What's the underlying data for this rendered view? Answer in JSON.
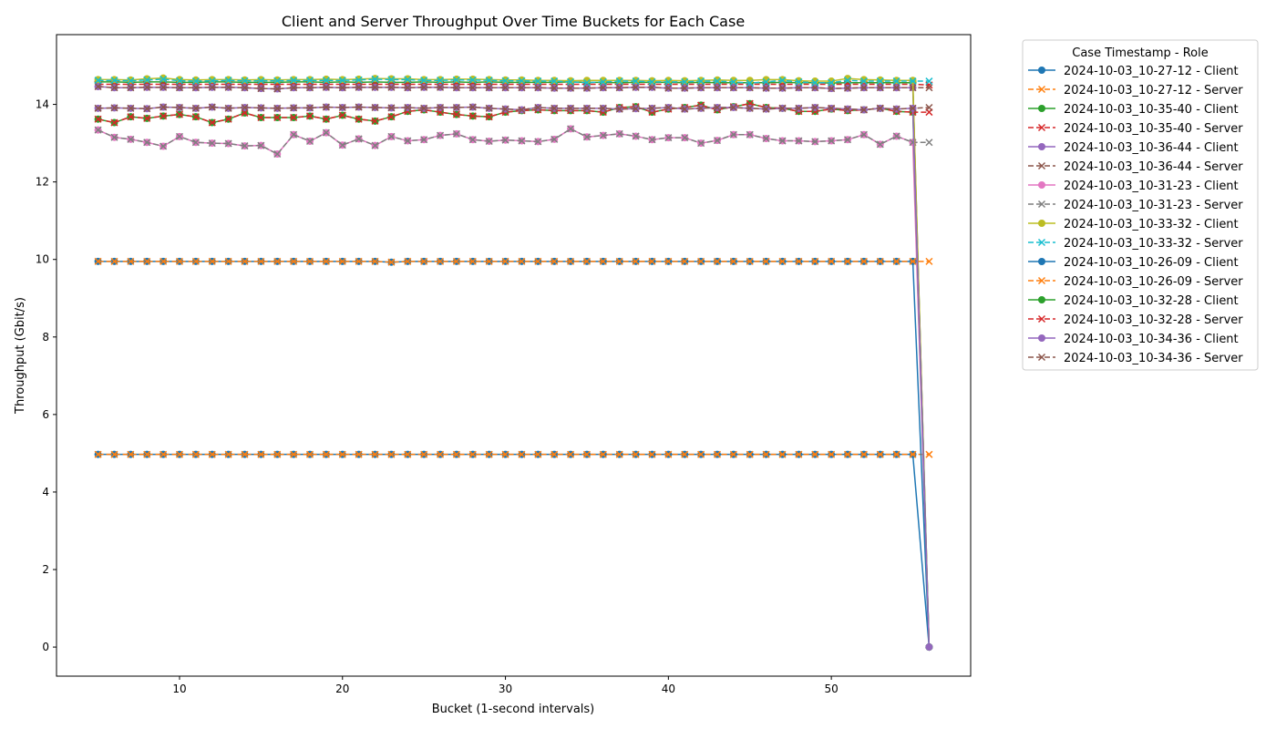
{
  "chart_data": {
    "type": "line",
    "title": "Client and Server Throughput Over Time Buckets for Each Case",
    "xlabel": "Bucket (1-second intervals)",
    "ylabel": "Throughput (Gbit/s)",
    "xlim": [
      2.45,
      58.55
    ],
    "ylim": [
      -0.75,
      15.8
    ],
    "xticks": [
      10,
      20,
      30,
      40,
      50
    ],
    "yticks": [
      0,
      2,
      4,
      6,
      8,
      10,
      12,
      14
    ],
    "grid": false,
    "legend": {
      "title": "Case Timestamp - Role",
      "placement": "outside-top-right"
    },
    "x_start": 5,
    "series": [
      {
        "name": "2024-10-03_10-27-12 - Client",
        "color": "#1f77b4",
        "dash": false,
        "marker": "circle",
        "values": [
          4.97,
          4.97,
          4.97,
          4.97,
          4.97,
          4.97,
          4.97,
          4.97,
          4.97,
          4.97,
          4.97,
          4.97,
          4.97,
          4.97,
          4.97,
          4.97,
          4.97,
          4.97,
          4.97,
          4.97,
          4.97,
          4.97,
          4.97,
          4.97,
          4.97,
          4.97,
          4.97,
          4.97,
          4.97,
          4.97,
          4.97,
          4.97,
          4.97,
          4.97,
          4.97,
          4.97,
          4.97,
          4.97,
          4.97,
          4.97,
          4.97,
          4.97,
          4.97,
          4.97,
          4.97,
          4.97,
          4.97,
          4.97,
          4.97,
          4.97,
          4.97,
          0.0
        ]
      },
      {
        "name": "2024-10-03_10-27-12 - Server",
        "color": "#ff7f0e",
        "dash": true,
        "marker": "x",
        "values": [
          4.97,
          4.97,
          4.97,
          4.97,
          4.97,
          4.97,
          4.97,
          4.97,
          4.97,
          4.97,
          4.97,
          4.97,
          4.97,
          4.97,
          4.97,
          4.97,
          4.97,
          4.97,
          4.97,
          4.97,
          4.97,
          4.97,
          4.97,
          4.97,
          4.97,
          4.97,
          4.97,
          4.97,
          4.97,
          4.97,
          4.97,
          4.97,
          4.97,
          4.97,
          4.97,
          4.97,
          4.97,
          4.97,
          4.97,
          4.97,
          4.97,
          4.97,
          4.97,
          4.97,
          4.97,
          4.97,
          4.97,
          4.97,
          4.97,
          4.97,
          4.97,
          4.97
        ]
      },
      {
        "name": "2024-10-03_10-35-40 - Client",
        "color": "#2ca02c",
        "dash": false,
        "marker": "circle",
        "values": [
          14.58,
          14.58,
          14.57,
          14.58,
          14.58,
          14.57,
          14.57,
          14.58,
          14.58,
          14.57,
          14.57,
          14.57,
          14.58,
          14.58,
          14.57,
          14.58,
          14.57,
          14.58,
          14.57,
          14.57,
          14.58,
          14.57,
          14.58,
          14.57,
          14.58,
          14.57,
          14.57,
          14.57,
          14.57,
          14.58,
          14.57,
          14.57,
          14.56,
          14.57,
          14.57,
          14.57,
          14.56,
          14.57,
          14.56,
          14.56,
          14.56,
          14.56,
          14.57,
          14.56,
          14.56,
          14.55,
          14.56,
          14.56,
          14.56,
          14.56,
          14.56,
          0.0
        ]
      },
      {
        "name": "2024-10-03_10-35-40 - Server",
        "color": "#d62728",
        "dash": true,
        "marker": "x",
        "values": [
          14.52,
          14.52,
          14.52,
          14.52,
          14.52,
          14.52,
          14.52,
          14.52,
          14.52,
          14.52,
          14.52,
          14.52,
          14.52,
          14.52,
          14.52,
          14.52,
          14.52,
          14.52,
          14.52,
          14.52,
          14.52,
          14.52,
          14.52,
          14.52,
          14.52,
          14.52,
          14.52,
          14.52,
          14.52,
          14.52,
          14.52,
          14.52,
          14.52,
          14.52,
          14.52,
          14.52,
          14.52,
          14.52,
          14.52,
          14.52,
          14.52,
          14.52,
          14.52,
          14.52,
          14.52,
          14.52,
          14.52,
          14.52,
          14.52,
          14.52,
          14.52,
          14.5
        ]
      },
      {
        "name": "2024-10-03_10-36-44 - Client",
        "color": "#9467bd",
        "dash": false,
        "marker": "circle",
        "values": [
          14.46,
          14.43,
          14.43,
          14.44,
          14.44,
          14.43,
          14.43,
          14.44,
          14.44,
          14.43,
          14.41,
          14.4,
          14.43,
          14.43,
          14.44,
          14.43,
          14.44,
          14.44,
          14.44,
          14.43,
          14.44,
          14.44,
          14.43,
          14.43,
          14.43,
          14.43,
          14.43,
          14.43,
          14.42,
          14.42,
          14.42,
          14.43,
          14.43,
          14.44,
          14.44,
          14.42,
          14.42,
          14.43,
          14.43,
          14.43,
          14.43,
          14.42,
          14.42,
          14.43,
          14.43,
          14.41,
          14.42,
          14.43,
          14.43,
          14.43,
          14.43,
          0.0
        ]
      },
      {
        "name": "2024-10-03_10-36-44 - Server",
        "color": "#8c564b",
        "dash": true,
        "marker": "x",
        "values": [
          14.46,
          14.43,
          14.43,
          14.44,
          14.44,
          14.43,
          14.43,
          14.44,
          14.44,
          14.43,
          14.41,
          14.4,
          14.43,
          14.43,
          14.44,
          14.43,
          14.44,
          14.44,
          14.44,
          14.43,
          14.44,
          14.44,
          14.43,
          14.43,
          14.43,
          14.43,
          14.43,
          14.43,
          14.42,
          14.42,
          14.42,
          14.43,
          14.43,
          14.44,
          14.44,
          14.42,
          14.42,
          14.43,
          14.43,
          14.43,
          14.43,
          14.42,
          14.42,
          14.43,
          14.43,
          14.41,
          14.42,
          14.43,
          14.43,
          14.43,
          14.43,
          14.43
        ]
      },
      {
        "name": "2024-10-03_10-31-23 - Client",
        "color": "#e377c2",
        "dash": false,
        "marker": "circle",
        "values": [
          13.34,
          13.15,
          13.1,
          13.02,
          12.92,
          13.17,
          13.02,
          13.0,
          12.99,
          12.93,
          12.94,
          12.72,
          13.22,
          13.05,
          13.27,
          12.95,
          13.11,
          12.94,
          13.17,
          13.06,
          13.09,
          13.2,
          13.24,
          13.09,
          13.05,
          13.08,
          13.06,
          13.04,
          13.1,
          13.37,
          13.16,
          13.2,
          13.24,
          13.18,
          13.09,
          13.14,
          13.14,
          13.0,
          13.07,
          13.22,
          13.22,
          13.12,
          13.06,
          13.06,
          13.04,
          13.06,
          13.09,
          13.22,
          12.97,
          13.18,
          13.02,
          0.0
        ]
      },
      {
        "name": "2024-10-03_10-31-23 - Server",
        "color": "#7f7f7f",
        "dash": true,
        "marker": "x",
        "values": [
          13.34,
          13.15,
          13.1,
          13.02,
          12.92,
          13.17,
          13.02,
          13.0,
          12.99,
          12.93,
          12.94,
          12.72,
          13.22,
          13.05,
          13.27,
          12.95,
          13.11,
          12.94,
          13.17,
          13.06,
          13.09,
          13.2,
          13.24,
          13.09,
          13.05,
          13.08,
          13.06,
          13.04,
          13.1,
          13.37,
          13.16,
          13.2,
          13.24,
          13.18,
          13.09,
          13.14,
          13.14,
          13.0,
          13.07,
          13.22,
          13.22,
          13.12,
          13.06,
          13.06,
          13.04,
          13.06,
          13.09,
          13.22,
          12.97,
          13.18,
          13.02,
          13.02
        ]
      },
      {
        "name": "2024-10-03_10-33-32 - Client",
        "color": "#bcbd22",
        "dash": false,
        "marker": "circle",
        "values": [
          14.64,
          14.64,
          14.63,
          14.66,
          14.68,
          14.64,
          14.63,
          14.64,
          14.64,
          14.63,
          14.64,
          14.63,
          14.64,
          14.64,
          14.65,
          14.64,
          14.65,
          14.67,
          14.66,
          14.66,
          14.64,
          14.64,
          14.65,
          14.65,
          14.64,
          14.63,
          14.63,
          14.62,
          14.62,
          14.61,
          14.62,
          14.62,
          14.62,
          14.62,
          14.61,
          14.62,
          14.61,
          14.62,
          14.63,
          14.62,
          14.62,
          14.64,
          14.64,
          14.61,
          14.6,
          14.6,
          14.67,
          14.64,
          14.63,
          14.62,
          14.62,
          0.0
        ]
      },
      {
        "name": "2024-10-03_10-33-32 - Server",
        "color": "#17becf",
        "dash": true,
        "marker": "x",
        "values": [
          14.62,
          14.62,
          14.61,
          14.63,
          14.65,
          14.61,
          14.6,
          14.61,
          14.62,
          14.61,
          14.61,
          14.61,
          14.62,
          14.62,
          14.62,
          14.62,
          14.63,
          14.65,
          14.64,
          14.64,
          14.62,
          14.62,
          14.63,
          14.63,
          14.62,
          14.61,
          14.61,
          14.6,
          14.6,
          14.58,
          14.56,
          14.58,
          14.6,
          14.6,
          14.58,
          14.58,
          14.58,
          14.6,
          14.6,
          14.58,
          14.55,
          14.58,
          14.62,
          14.58,
          14.56,
          14.56,
          14.62,
          14.6,
          14.6,
          14.6,
          14.6,
          14.6
        ]
      },
      {
        "name": "2024-10-03_10-26-09 - Client",
        "color": "#1f77b4",
        "dash": false,
        "marker": "circle",
        "values": [
          9.95,
          9.95,
          9.95,
          9.95,
          9.95,
          9.95,
          9.95,
          9.95,
          9.95,
          9.95,
          9.95,
          9.95,
          9.95,
          9.95,
          9.95,
          9.95,
          9.95,
          9.95,
          9.93,
          9.95,
          9.95,
          9.95,
          9.95,
          9.95,
          9.95,
          9.95,
          9.95,
          9.95,
          9.95,
          9.95,
          9.95,
          9.95,
          9.95,
          9.95,
          9.95,
          9.95,
          9.95,
          9.95,
          9.95,
          9.95,
          9.95,
          9.95,
          9.95,
          9.95,
          9.95,
          9.95,
          9.95,
          9.95,
          9.95,
          9.95,
          9.95,
          0.0
        ]
      },
      {
        "name": "2024-10-03_10-26-09 - Server",
        "color": "#ff7f0e",
        "dash": true,
        "marker": "x",
        "values": [
          9.95,
          9.95,
          9.95,
          9.95,
          9.95,
          9.95,
          9.95,
          9.95,
          9.95,
          9.95,
          9.95,
          9.95,
          9.95,
          9.95,
          9.95,
          9.95,
          9.95,
          9.95,
          9.93,
          9.95,
          9.95,
          9.95,
          9.95,
          9.95,
          9.95,
          9.95,
          9.95,
          9.95,
          9.95,
          9.95,
          9.95,
          9.95,
          9.95,
          9.95,
          9.95,
          9.95,
          9.95,
          9.95,
          9.95,
          9.95,
          9.95,
          9.95,
          9.95,
          9.95,
          9.95,
          9.95,
          9.95,
          9.95,
          9.95,
          9.95,
          9.95,
          9.95
        ]
      },
      {
        "name": "2024-10-03_10-32-28 - Client",
        "color": "#2ca02c",
        "dash": false,
        "marker": "circle",
        "values": [
          13.62,
          13.53,
          13.68,
          13.64,
          13.7,
          13.74,
          13.68,
          13.53,
          13.62,
          13.78,
          13.66,
          13.66,
          13.66,
          13.7,
          13.62,
          13.72,
          13.62,
          13.57,
          13.68,
          13.82,
          13.86,
          13.8,
          13.74,
          13.7,
          13.68,
          13.8,
          13.84,
          13.86,
          13.84,
          13.84,
          13.84,
          13.8,
          13.92,
          13.94,
          13.8,
          13.88,
          13.92,
          13.98,
          13.86,
          13.94,
          14.02,
          13.92,
          13.9,
          13.82,
          13.82,
          13.88,
          13.84,
          13.86,
          13.9,
          13.82,
          13.8,
          0.0
        ]
      },
      {
        "name": "2024-10-03_10-32-28 - Server",
        "color": "#d62728",
        "dash": true,
        "marker": "x",
        "values": [
          13.62,
          13.53,
          13.68,
          13.64,
          13.7,
          13.74,
          13.68,
          13.53,
          13.62,
          13.78,
          13.66,
          13.66,
          13.66,
          13.7,
          13.62,
          13.72,
          13.62,
          13.57,
          13.68,
          13.82,
          13.86,
          13.8,
          13.74,
          13.7,
          13.68,
          13.8,
          13.84,
          13.86,
          13.84,
          13.84,
          13.84,
          13.8,
          13.92,
          13.94,
          13.8,
          13.88,
          13.92,
          13.98,
          13.86,
          13.94,
          14.02,
          13.92,
          13.9,
          13.82,
          13.82,
          13.88,
          13.84,
          13.86,
          13.9,
          13.82,
          13.8,
          13.8
        ]
      },
      {
        "name": "2024-10-03_10-34-36 - Client",
        "color": "#9467bd",
        "dash": false,
        "marker": "circle",
        "values": [
          13.9,
          13.91,
          13.9,
          13.89,
          13.93,
          13.92,
          13.9,
          13.93,
          13.9,
          13.92,
          13.91,
          13.9,
          13.91,
          13.91,
          13.93,
          13.92,
          13.93,
          13.92,
          13.91,
          13.92,
          13.9,
          13.92,
          13.92,
          13.93,
          13.9,
          13.88,
          13.86,
          13.92,
          13.9,
          13.9,
          13.9,
          13.9,
          13.88,
          13.89,
          13.9,
          13.92,
          13.88,
          13.9,
          13.92,
          13.92,
          13.9,
          13.88,
          13.9,
          13.9,
          13.92,
          13.9,
          13.88,
          13.86,
          13.9,
          13.88,
          13.9,
          0.0
        ]
      },
      {
        "name": "2024-10-03_10-34-36 - Server",
        "color": "#8c564b",
        "dash": true,
        "marker": "x",
        "values": [
          13.9,
          13.91,
          13.9,
          13.89,
          13.93,
          13.92,
          13.9,
          13.93,
          13.9,
          13.92,
          13.91,
          13.9,
          13.91,
          13.91,
          13.93,
          13.92,
          13.93,
          13.92,
          13.91,
          13.92,
          13.9,
          13.92,
          13.92,
          13.93,
          13.9,
          13.88,
          13.86,
          13.92,
          13.9,
          13.9,
          13.9,
          13.9,
          13.88,
          13.89,
          13.9,
          13.92,
          13.88,
          13.9,
          13.92,
          13.92,
          13.9,
          13.88,
          13.9,
          13.9,
          13.92,
          13.9,
          13.88,
          13.86,
          13.9,
          13.88,
          13.9,
          13.92
        ]
      }
    ]
  }
}
